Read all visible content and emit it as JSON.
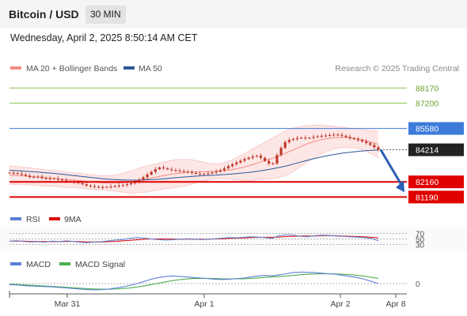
{
  "header": {
    "title": "Bitcoin / USD",
    "timeframe": "30 MIN",
    "datetime": "Wednesday, April 2, 2025 8:50:14 AM CET"
  },
  "colors": {
    "ma20": "#f28b82",
    "ma50": "#2b5797",
    "bollinger_fill": "#fde0e0",
    "candle": "#c0392b",
    "support": "#e00000",
    "target_green": "#8bc34a",
    "resistance_blue": "#3d7bd9",
    "current_price": "#222222",
    "rsi": "#5b7fd6",
    "rsi_ma": "#e00000",
    "macd": "#5b7fd6",
    "macd_signal": "#4caf50",
    "arrow": "#2b5fb4"
  },
  "chart_data": {
    "type": "candlestick",
    "legend": [
      {
        "name": "MA 20 + Bollinger Bands",
        "color": "#f28b82"
      },
      {
        "name": "MA 50",
        "color": "#2b5797"
      }
    ],
    "watermark": "Research © 2025 Trading Central",
    "x_ticks": [
      "Mar 31",
      "Apr 1",
      "Apr 2",
      "Apr 8"
    ],
    "levels": [
      {
        "value": 88170,
        "label": "88170",
        "kind": "target"
      },
      {
        "value": 87200,
        "label": "87200",
        "kind": "target"
      },
      {
        "value": 85580,
        "label": "85580",
        "kind": "pivot"
      },
      {
        "value": 84214,
        "label": "84214",
        "kind": "current"
      },
      {
        "value": 82160,
        "label": "82160",
        "kind": "support"
      },
      {
        "value": 81190,
        "label": "81190",
        "kind": "support"
      }
    ],
    "price_path": [
      82750,
      82700,
      82600,
      82450,
      82500,
      82350,
      82400,
      82300,
      82200,
      82150,
      82050,
      81900,
      81850,
      81800,
      81850,
      81900,
      81950,
      82050,
      82200,
      82500,
      82800,
      83100,
      83000,
      82900,
      82850,
      82800,
      82700,
      82650,
      82700,
      82800,
      82950,
      83200,
      83400,
      83600,
      83750,
      83850,
      83500,
      83200,
      84150,
      84800,
      84900,
      85000,
      84950,
      85050,
      85100,
      85150,
      85200,
      85100,
      84950,
      84850,
      84700,
      84500,
      84214
    ],
    "ma20_path": [
      82600,
      82580,
      82550,
      82500,
      82470,
      82420,
      82390,
      82350,
      82300,
      82270,
      82230,
      82180,
      82130,
      82100,
      82080,
      82080,
      82100,
      82150,
      82230,
      82320,
      82410,
      82500,
      82590,
      82660,
      82720,
      82770,
      82800,
      82810,
      82820,
      82830,
      82860,
      82920,
      83000,
      83100,
      83230,
      83380,
      83520,
      83660,
      83820,
      84010,
      84210,
      84410,
      84600,
      84750,
      84870,
      84950,
      85000,
      85010,
      84990,
      84930,
      84830,
      84700,
      84560
    ],
    "ma50_path": [
      82900,
      82880,
      82850,
      82820,
      82790,
      82750,
      82710,
      82670,
      82620,
      82570,
      82520,
      82470,
      82420,
      82370,
      82330,
      82300,
      82280,
      82270,
      82270,
      82280,
      82300,
      82330,
      82370,
      82410,
      82450,
      82490,
      82520,
      82550,
      82570,
      82590,
      82620,
      82650,
      82690,
      82730,
      82780,
      82840,
      82910,
      82990,
      83080,
      83180,
      83300,
      83420,
      83540,
      83660,
      83760,
      83850,
      83930,
      84000,
      84060,
      84110,
      84150,
      84180,
      84200
    ],
    "bb_upper_path": [
      83200,
      83150,
      83100,
      83050,
      83000,
      82950,
      82900,
      82850,
      82800,
      82750,
      82700,
      82650,
      82600,
      82560,
      82560,
      82600,
      82700,
      82850,
      83000,
      83150,
      83250,
      83350,
      83450,
      83550,
      83600,
      83600,
      83550,
      83450,
      83350,
      83300,
      83350,
      83500,
      83700,
      83950,
      84200,
      84450,
      84700,
      84950,
      85200,
      85450,
      85600,
      85700,
      85750,
      85800,
      85800,
      85750,
      85700,
      85650,
      85600,
      85550,
      85500,
      85450,
      85400
    ],
    "bb_lower_path": [
      82000,
      82010,
      82000,
      81950,
      81940,
      81890,
      81880,
      81850,
      81800,
      81790,
      81760,
      81710,
      81660,
      81640,
      81600,
      81560,
      81500,
      81450,
      81460,
      81490,
      81570,
      81650,
      81730,
      81770,
      81840,
      81940,
      82050,
      82170,
      82290,
      82360,
      82370,
      82340,
      82300,
      82250,
      82260,
      82310,
      82340,
      82370,
      82440,
      82570,
      82820,
      83120,
      83450,
      83700,
      83940,
      84150,
      84300,
      84370,
      84380,
      84310,
      84160,
      83950,
      83720
    ],
    "forecast": {
      "from": 84214,
      "to": 81190
    },
    "rsi": {
      "name": "RSI",
      "ma_name": "9MA",
      "levels": [
        70,
        50,
        30
      ],
      "values": [
        42,
        44,
        41,
        39,
        40,
        38,
        42,
        40,
        43,
        41,
        38,
        36,
        39,
        40,
        43,
        46,
        48,
        52,
        55,
        53,
        50,
        48,
        46,
        47,
        49,
        51,
        50,
        48,
        49,
        51,
        53,
        55,
        54,
        56,
        58,
        57,
        55,
        52,
        62,
        66,
        64,
        60,
        58,
        62,
        64,
        63,
        61,
        60,
        58,
        57,
        55,
        52,
        44
      ],
      "ma_values": [
        42,
        42,
        42,
        41,
        41,
        40,
        40,
        40,
        41,
        41,
        40,
        39,
        39,
        39,
        40,
        41,
        43,
        45,
        47,
        49,
        50,
        50,
        50,
        49,
        49,
        49,
        49,
        49,
        49,
        50,
        51,
        52,
        53,
        54,
        55,
        56,
        56,
        56,
        57,
        59,
        60,
        61,
        61,
        61,
        62,
        62,
        62,
        61,
        60,
        59,
        58,
        56,
        54
      ]
    },
    "macd": {
      "name": "MACD",
      "signal_name": "MACD Signal",
      "zero_label": "0",
      "values": [
        -20,
        -25,
        -35,
        -45,
        -50,
        -55,
        -60,
        -70,
        -80,
        -90,
        -100,
        -110,
        -115,
        -110,
        -100,
        -80,
        -60,
        -30,
        0,
        40,
        80,
        110,
        130,
        140,
        130,
        120,
        110,
        100,
        90,
        80,
        75,
        80,
        90,
        100,
        120,
        140,
        150,
        140,
        160,
        180,
        200,
        210,
        205,
        200,
        190,
        180,
        170,
        150,
        130,
        110,
        80,
        40,
        0
      ],
      "signal_values": [
        -10,
        -15,
        -22,
        -30,
        -38,
        -45,
        -52,
        -60,
        -68,
        -76,
        -84,
        -92,
        -98,
        -102,
        -102,
        -98,
        -90,
        -78,
        -62,
        -42,
        -18,
        8,
        32,
        55,
        72,
        84,
        92,
        95,
        95,
        92,
        88,
        86,
        86,
        88,
        94,
        103,
        113,
        120,
        128,
        138,
        150,
        162,
        170,
        176,
        178,
        178,
        176,
        170,
        162,
        150,
        135,
        116,
        94
      ]
    }
  }
}
